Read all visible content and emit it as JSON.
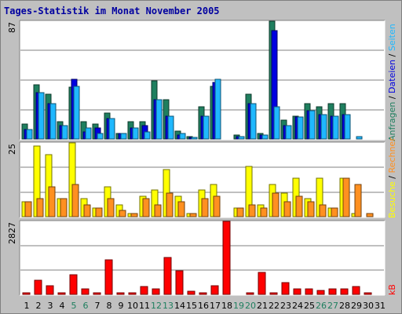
{
  "title": "Tages-Statistik im Monat November 2005",
  "colors": {
    "background": "#c0c0c0",
    "panel": "#ffffff",
    "gridline": "#808080",
    "anfragen": "#1f7f5f",
    "dateien": "#0000e0",
    "seiten": "#1fb8ff",
    "besuche": "#ffff00",
    "rechner": "#ff9020",
    "kb": "#ff0000",
    "title": "#0000a0",
    "weekday_label": "#000000",
    "weekend_label": "#1f7f5f"
  },
  "chart_data": [
    {
      "type": "bar",
      "panel": "top",
      "ymax_label": "87",
      "ylim": [
        0,
        87
      ],
      "categories": [
        "1",
        "2",
        "3",
        "4",
        "5",
        "6",
        "7",
        "8",
        "9",
        "10",
        "11",
        "12",
        "13",
        "14",
        "15",
        "16",
        "17",
        "18",
        "19",
        "20",
        "21",
        "22",
        "23",
        "24",
        "25",
        "26",
        "27",
        "28",
        "29",
        "30",
        "31"
      ],
      "legend": [
        {
          "text": "Anfragen",
          "color_key": "anfragen"
        },
        {
          "text": "Dateien",
          "color_key": "dateien"
        },
        {
          "text": "Seiten",
          "color_key": "seiten"
        }
      ],
      "series": [
        {
          "name": "Anfragen",
          "values": [
            11,
            40,
            33,
            13,
            38,
            13,
            11,
            19,
            4,
            13,
            13,
            43,
            29,
            6,
            2,
            24,
            39,
            0,
            3,
            33,
            4,
            87,
            14,
            17,
            26,
            24,
            26,
            26,
            0,
            0,
            0
          ]
        },
        {
          "name": "Dateien",
          "values": [
            7,
            34,
            26,
            10,
            44,
            5,
            8,
            15,
            4,
            8,
            10,
            29,
            17,
            3,
            1,
            17,
            42,
            0,
            2,
            26,
            3,
            80,
            10,
            16,
            21,
            18,
            17,
            18,
            0,
            0,
            0
          ]
        },
        {
          "name": "Seiten",
          "values": [
            7,
            34,
            26,
            10,
            39,
            8,
            4,
            15,
            4,
            8,
            5,
            29,
            17,
            4,
            1,
            17,
            44,
            0,
            2,
            26,
            3,
            24,
            10,
            16,
            21,
            18,
            17,
            18,
            2,
            0,
            0
          ]
        }
      ]
    },
    {
      "type": "bar",
      "panel": "middle",
      "ymax_label": "25",
      "ylim": [
        0,
        25
      ],
      "categories": [
        "1",
        "2",
        "3",
        "4",
        "5",
        "6",
        "7",
        "8",
        "9",
        "10",
        "11",
        "12",
        "13",
        "14",
        "15",
        "16",
        "17",
        "18",
        "19",
        "20",
        "21",
        "22",
        "23",
        "24",
        "25",
        "26",
        "27",
        "28",
        "29",
        "30",
        "31"
      ],
      "legend": [
        {
          "text": "Besuche",
          "color_key": "besuche"
        },
        {
          "text": "Rechner",
          "color_key": "rechner"
        }
      ],
      "series": [
        {
          "name": "Besuche",
          "values": [
            5,
            24,
            21,
            6,
            25,
            6,
            3,
            10,
            4,
            1,
            7,
            9,
            16,
            7,
            1,
            9,
            11,
            0,
            3,
            17,
            4,
            11,
            8,
            13,
            6,
            13,
            3,
            13,
            1,
            0,
            0
          ]
        },
        {
          "name": "Rechner",
          "values": [
            5,
            6,
            10,
            6,
            11,
            4,
            3,
            6,
            2,
            1,
            6,
            4,
            8,
            5,
            1,
            6,
            7,
            0,
            3,
            4,
            3,
            8,
            5,
            7,
            5,
            4,
            3,
            13,
            11,
            1,
            0
          ]
        }
      ]
    },
    {
      "type": "bar",
      "panel": "bottom",
      "ymax_label": "2827",
      "ylim": [
        0,
        2827
      ],
      "categories": [
        "1",
        "2",
        "3",
        "4",
        "5",
        "6",
        "7",
        "8",
        "9",
        "10",
        "11",
        "12",
        "13",
        "14",
        "15",
        "16",
        "17",
        "18",
        "19",
        "20",
        "21",
        "22",
        "23",
        "24",
        "25",
        "26",
        "27",
        "28",
        "29",
        "30",
        "31"
      ],
      "legend": [
        {
          "text": "kB",
          "color_key": "kb"
        }
      ],
      "series": [
        {
          "name": "kB",
          "values": [
            60,
            560,
            340,
            60,
            760,
            200,
            60,
            1330,
            60,
            60,
            310,
            220,
            1420,
            900,
            120,
            60,
            340,
            2827,
            0,
            60,
            860,
            60,
            450,
            220,
            200,
            150,
            220,
            200,
            310,
            60,
            0
          ]
        }
      ]
    }
  ],
  "x_labels": [
    {
      "text": "1",
      "weekend": false
    },
    {
      "text": "2",
      "weekend": false
    },
    {
      "text": "3",
      "weekend": false
    },
    {
      "text": "4",
      "weekend": false
    },
    {
      "text": "5",
      "weekend": true
    },
    {
      "text": "6",
      "weekend": true
    },
    {
      "text": "7",
      "weekend": false
    },
    {
      "text": "8",
      "weekend": false
    },
    {
      "text": "9",
      "weekend": false
    },
    {
      "text": "10",
      "weekend": false
    },
    {
      "text": "11",
      "weekend": false
    },
    {
      "text": "12",
      "weekend": true
    },
    {
      "text": "13",
      "weekend": true
    },
    {
      "text": "14",
      "weekend": false
    },
    {
      "text": "15",
      "weekend": false
    },
    {
      "text": "16",
      "weekend": false
    },
    {
      "text": "17",
      "weekend": false
    },
    {
      "text": "18",
      "weekend": false
    },
    {
      "text": "19",
      "weekend": true
    },
    {
      "text": "20",
      "weekend": true
    },
    {
      "text": "21",
      "weekend": false
    },
    {
      "text": "22",
      "weekend": false
    },
    {
      "text": "23",
      "weekend": false
    },
    {
      "text": "24",
      "weekend": false
    },
    {
      "text": "25",
      "weekend": false
    },
    {
      "text": "26",
      "weekend": true
    },
    {
      "text": "27",
      "weekend": true
    },
    {
      "text": "28",
      "weekend": false
    },
    {
      "text": "29",
      "weekend": false
    },
    {
      "text": "30",
      "weekend": false
    },
    {
      "text": "31",
      "weekend": false
    }
  ]
}
